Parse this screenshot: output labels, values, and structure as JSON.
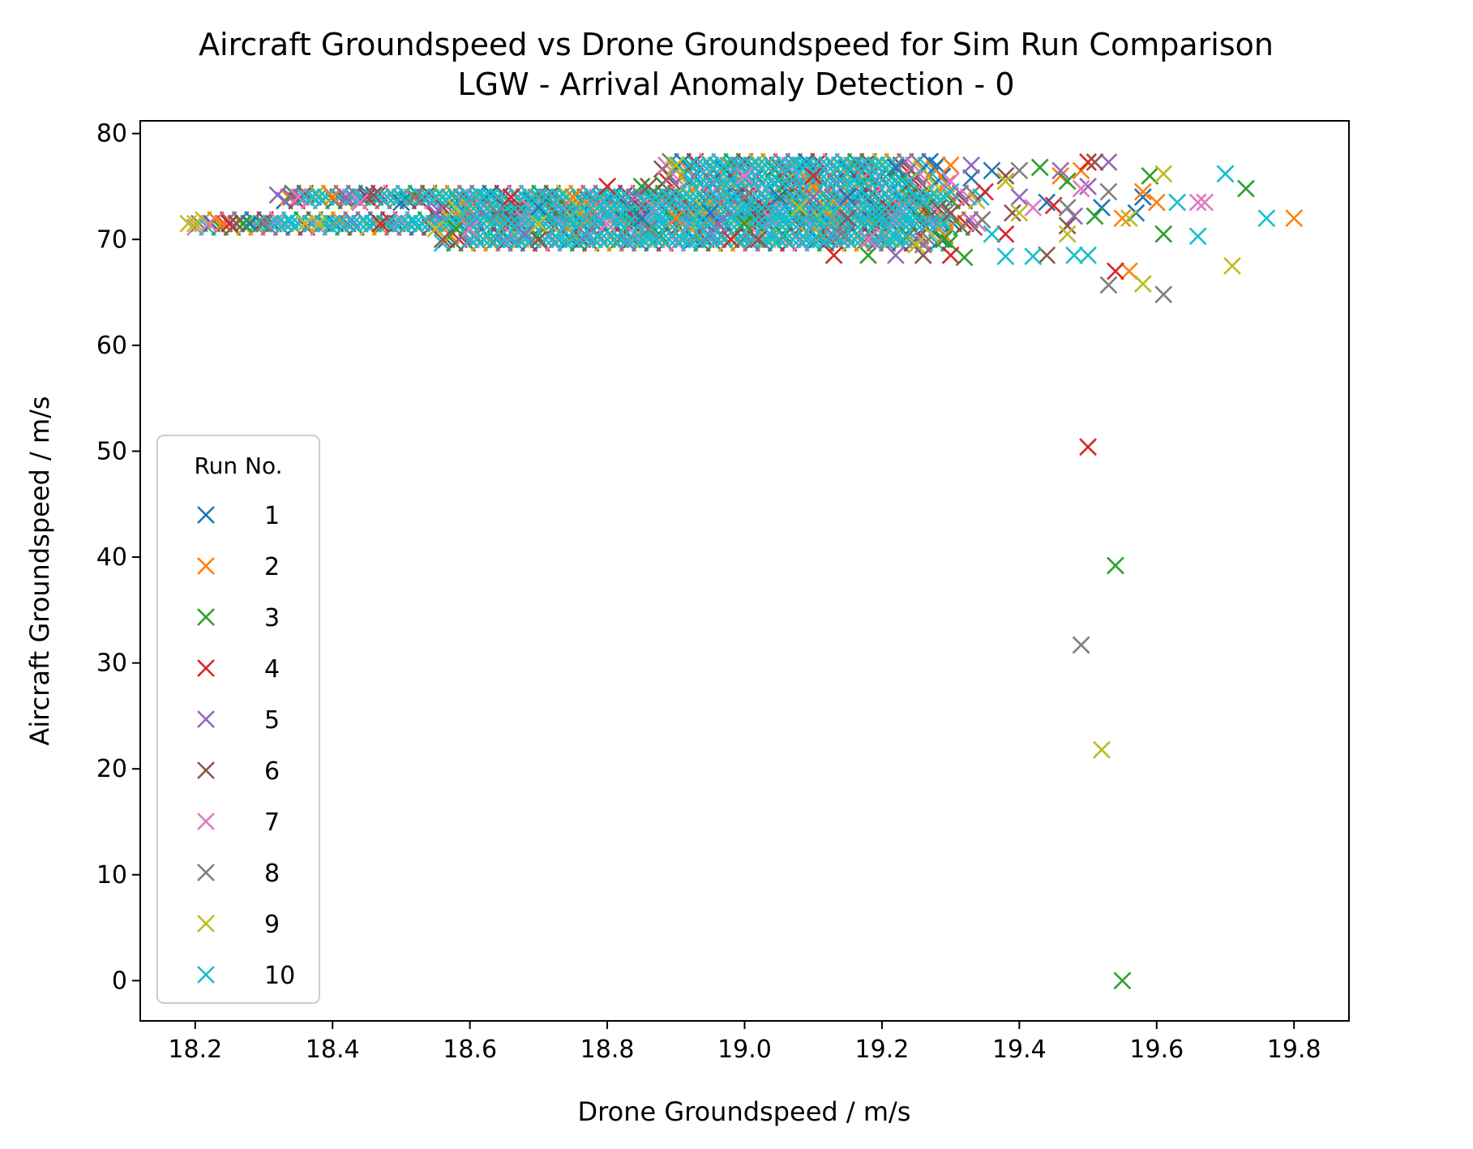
{
  "chart_data": {
    "type": "scatter",
    "title": "Aircraft Groundspeed vs Drone Groundspeed for Sim Run Comparison",
    "subtitle": "LGW - Arrival Anomaly Detection - 0",
    "xlabel": "Drone Groundspeed / m/s",
    "ylabel": "Aircraft Groundspeed / m/s",
    "xlim": [
      18.12,
      19.88
    ],
    "ylim": [
      -3.8,
      81.2
    ],
    "xticks": [
      18.2,
      18.4,
      18.6,
      18.8,
      19.0,
      19.2,
      19.4,
      19.6,
      19.8
    ],
    "xtick_labels": [
      "18.2",
      "18.4",
      "18.6",
      "18.8",
      "19.0",
      "19.2",
      "19.4",
      "19.6",
      "19.8"
    ],
    "yticks": [
      0,
      10,
      20,
      30,
      40,
      50,
      60,
      70,
      80
    ],
    "ytick_labels": [
      "0",
      "10",
      "20",
      "30",
      "40",
      "50",
      "60",
      "70",
      "80"
    ],
    "grid": false,
    "marker": "x",
    "legend": {
      "title": "Run No.",
      "placement": "lower-left"
    },
    "series": [
      {
        "name": "1",
        "color": "#1f77b4",
        "points": [
          [
            19.58,
            74.0
          ],
          [
            19.57,
            72.5
          ],
          [
            19.52,
            73.0
          ],
          [
            19.44,
            73.5
          ],
          [
            19.36,
            76.5
          ],
          [
            19.33,
            75.8
          ],
          [
            19.28,
            77.0
          ],
          [
            19.22,
            76.8
          ],
          [
            19.15,
            74.0
          ],
          [
            19.05,
            74.0
          ],
          [
            18.95,
            72.5
          ],
          [
            18.85,
            72.0
          ],
          [
            18.7,
            73.0
          ],
          [
            18.5,
            73.5
          ],
          [
            18.36,
            74.0
          ],
          [
            18.28,
            71.5
          ]
        ]
      },
      {
        "name": "2",
        "color": "#ff7f0e",
        "points": [
          [
            19.8,
            72.0
          ],
          [
            19.6,
            73.5
          ],
          [
            19.58,
            74.5
          ],
          [
            19.56,
            67.0
          ],
          [
            19.55,
            72.0
          ],
          [
            19.49,
            76.5
          ],
          [
            19.46,
            76.0
          ],
          [
            19.3,
            77.0
          ],
          [
            19.1,
            75.0
          ],
          [
            18.9,
            72.0
          ],
          [
            18.75,
            74.0
          ],
          [
            18.6,
            71.5
          ],
          [
            18.4,
            74.0
          ],
          [
            18.24,
            71.5
          ]
        ]
      },
      {
        "name": "3",
        "color": "#2ca02c",
        "points": [
          [
            19.73,
            74.8
          ],
          [
            19.61,
            70.5
          ],
          [
            19.59,
            76.0
          ],
          [
            19.55,
            0.0
          ],
          [
            19.54,
            39.2
          ],
          [
            19.51,
            72.2
          ],
          [
            19.47,
            75.5
          ],
          [
            19.43,
            76.8
          ],
          [
            19.32,
            68.3
          ],
          [
            19.29,
            70.0
          ],
          [
            19.18,
            68.5
          ],
          [
            19.0,
            71.5
          ],
          [
            18.85,
            75.0
          ],
          [
            18.7,
            70.0
          ],
          [
            18.58,
            71.0
          ],
          [
            18.27,
            71.5
          ]
        ]
      },
      {
        "name": "4",
        "color": "#d62728",
        "points": [
          [
            19.54,
            67.0
          ],
          [
            19.5,
            50.4
          ],
          [
            19.5,
            77.3
          ],
          [
            19.45,
            73.2
          ],
          [
            19.38,
            70.5
          ],
          [
            19.35,
            74.5
          ],
          [
            19.3,
            68.5
          ],
          [
            19.13,
            68.5
          ],
          [
            19.1,
            76.0
          ],
          [
            18.98,
            70.0
          ],
          [
            18.8,
            75.0
          ],
          [
            18.66,
            74.0
          ],
          [
            18.47,
            71.5
          ],
          [
            18.45,
            74.0
          ],
          [
            18.25,
            71.5
          ]
        ]
      },
      {
        "name": "5",
        "color": "#9467bd",
        "points": [
          [
            19.53,
            77.3
          ],
          [
            19.5,
            75.0
          ],
          [
            19.48,
            72.2
          ],
          [
            19.46,
            76.5
          ],
          [
            19.4,
            74.0
          ],
          [
            19.33,
            77.0
          ],
          [
            19.22,
            68.5
          ],
          [
            19.1,
            74.0
          ],
          [
            18.96,
            71.5
          ],
          [
            18.84,
            74.0
          ],
          [
            18.68,
            70.5
          ],
          [
            18.55,
            72.5
          ],
          [
            18.42,
            74.0
          ],
          [
            18.34,
            74.0
          ],
          [
            18.32,
            74.2
          ]
        ]
      },
      {
        "name": "6",
        "color": "#8c564b",
        "points": [
          [
            19.51,
            77.3
          ],
          [
            19.47,
            71.3
          ],
          [
            19.44,
            68.5
          ],
          [
            19.39,
            72.5
          ],
          [
            19.38,
            76.0
          ],
          [
            19.3,
            72.5
          ],
          [
            19.26,
            68.5
          ],
          [
            19.15,
            72.0
          ],
          [
            19.02,
            70.0
          ],
          [
            18.86,
            75.0
          ],
          [
            18.7,
            70.0
          ],
          [
            18.56,
            70.0
          ],
          [
            18.46,
            74.2
          ],
          [
            18.26,
            71.5
          ]
        ]
      },
      {
        "name": "7",
        "color": "#e377c2",
        "points": [
          [
            19.67,
            73.5
          ],
          [
            19.66,
            73.5
          ],
          [
            19.49,
            74.8
          ],
          [
            19.42,
            73.0
          ],
          [
            19.3,
            75.5
          ],
          [
            19.18,
            70.0
          ],
          [
            19.0,
            76.0
          ],
          [
            18.8,
            71.5
          ],
          [
            18.6,
            71.0
          ],
          [
            18.44,
            73.5
          ],
          [
            18.35,
            74.0
          ],
          [
            18.22,
            71.5
          ]
        ]
      },
      {
        "name": "8",
        "color": "#7f7f7f",
        "points": [
          [
            19.61,
            64.8
          ],
          [
            19.53,
            65.7
          ],
          [
            19.49,
            31.7
          ],
          [
            19.53,
            74.5
          ],
          [
            19.47,
            73.0
          ],
          [
            19.4,
            76.5
          ],
          [
            19.26,
            69.5
          ],
          [
            19.14,
            70.5
          ],
          [
            19.0,
            74.0
          ],
          [
            18.86,
            71.0
          ],
          [
            18.64,
            72.5
          ],
          [
            18.52,
            74.0
          ],
          [
            18.3,
            71.5
          ]
        ]
      },
      {
        "name": "9",
        "color": "#bcbd22",
        "points": [
          [
            19.71,
            67.5
          ],
          [
            19.61,
            76.2
          ],
          [
            19.58,
            65.8
          ],
          [
            19.56,
            72.0
          ],
          [
            19.52,
            21.8
          ],
          [
            19.47,
            70.5
          ],
          [
            19.4,
            72.5
          ],
          [
            19.38,
            75.5
          ],
          [
            19.25,
            69.5
          ],
          [
            19.08,
            73.0
          ],
          [
            18.9,
            77.0
          ],
          [
            18.7,
            71.5
          ],
          [
            18.55,
            71.0
          ],
          [
            18.38,
            71.5
          ],
          [
            18.36,
            71.5
          ],
          [
            18.2,
            71.5
          ],
          [
            18.19,
            71.5
          ]
        ]
      },
      {
        "name": "10",
        "color": "#17becf",
        "points": [
          [
            19.76,
            72.0
          ],
          [
            19.7,
            76.2
          ],
          [
            19.66,
            70.3
          ],
          [
            19.63,
            73.5
          ],
          [
            19.5,
            68.5
          ],
          [
            19.48,
            68.5
          ],
          [
            19.42,
            68.4
          ],
          [
            19.38,
            68.4
          ],
          [
            19.36,
            70.5
          ],
          [
            19.3,
            74.5
          ],
          [
            19.26,
            73.5
          ],
          [
            19.2,
            72.0
          ],
          [
            19.1,
            71.5
          ],
          [
            19.05,
            72.5
          ],
          [
            19.0,
            73.0
          ],
          [
            18.95,
            71.5
          ],
          [
            18.9,
            74.0
          ],
          [
            18.8,
            72.5
          ],
          [
            18.7,
            74.0
          ],
          [
            18.6,
            71.5
          ],
          [
            18.5,
            74.0
          ],
          [
            18.4,
            71.5
          ],
          [
            18.36,
            74.0
          ]
        ]
      }
    ]
  }
}
